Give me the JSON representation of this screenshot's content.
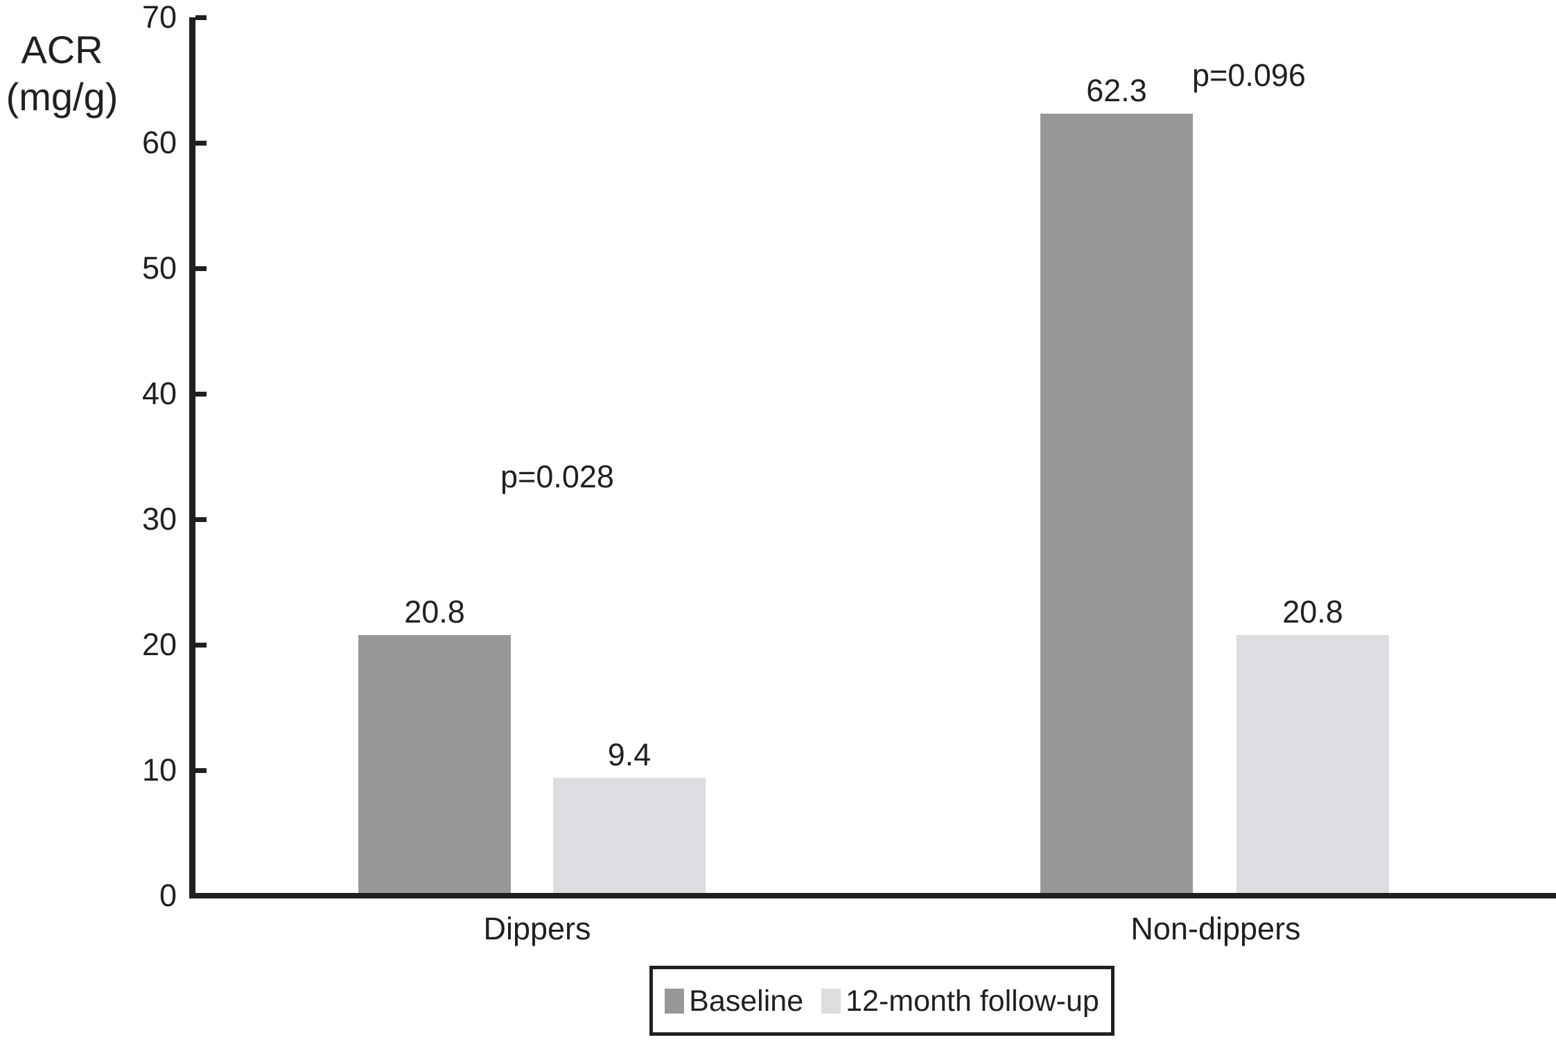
{
  "chart_data": {
    "type": "bar",
    "title": "",
    "ylabel": "ACR (mg/g)",
    "ylabel_lines": [
      "ACR",
      "(mg/g)"
    ],
    "xlabel": "",
    "categories": [
      "Dippers",
      "Non-dippers"
    ],
    "series": [
      {
        "name": "Baseline",
        "color": "#97989a",
        "values": [
          20.8,
          62.3
        ]
      },
      {
        "name": "12-month follow-up",
        "color": "#dcdde0",
        "values": [
          9.4,
          20.8
        ]
      }
    ],
    "annotations": [
      {
        "text": "p=0.028",
        "category": "Dippers"
      },
      {
        "text": "p=0.096",
        "category": "Non-dippers"
      }
    ],
    "ylim": [
      0,
      70
    ],
    "yticks": [
      0,
      10,
      20,
      30,
      40,
      50,
      60,
      70
    ],
    "grid": false,
    "legend_position": "bottom",
    "axis_color": "#231f20",
    "text_color": "#231f20",
    "background_color": "#ffffff"
  }
}
